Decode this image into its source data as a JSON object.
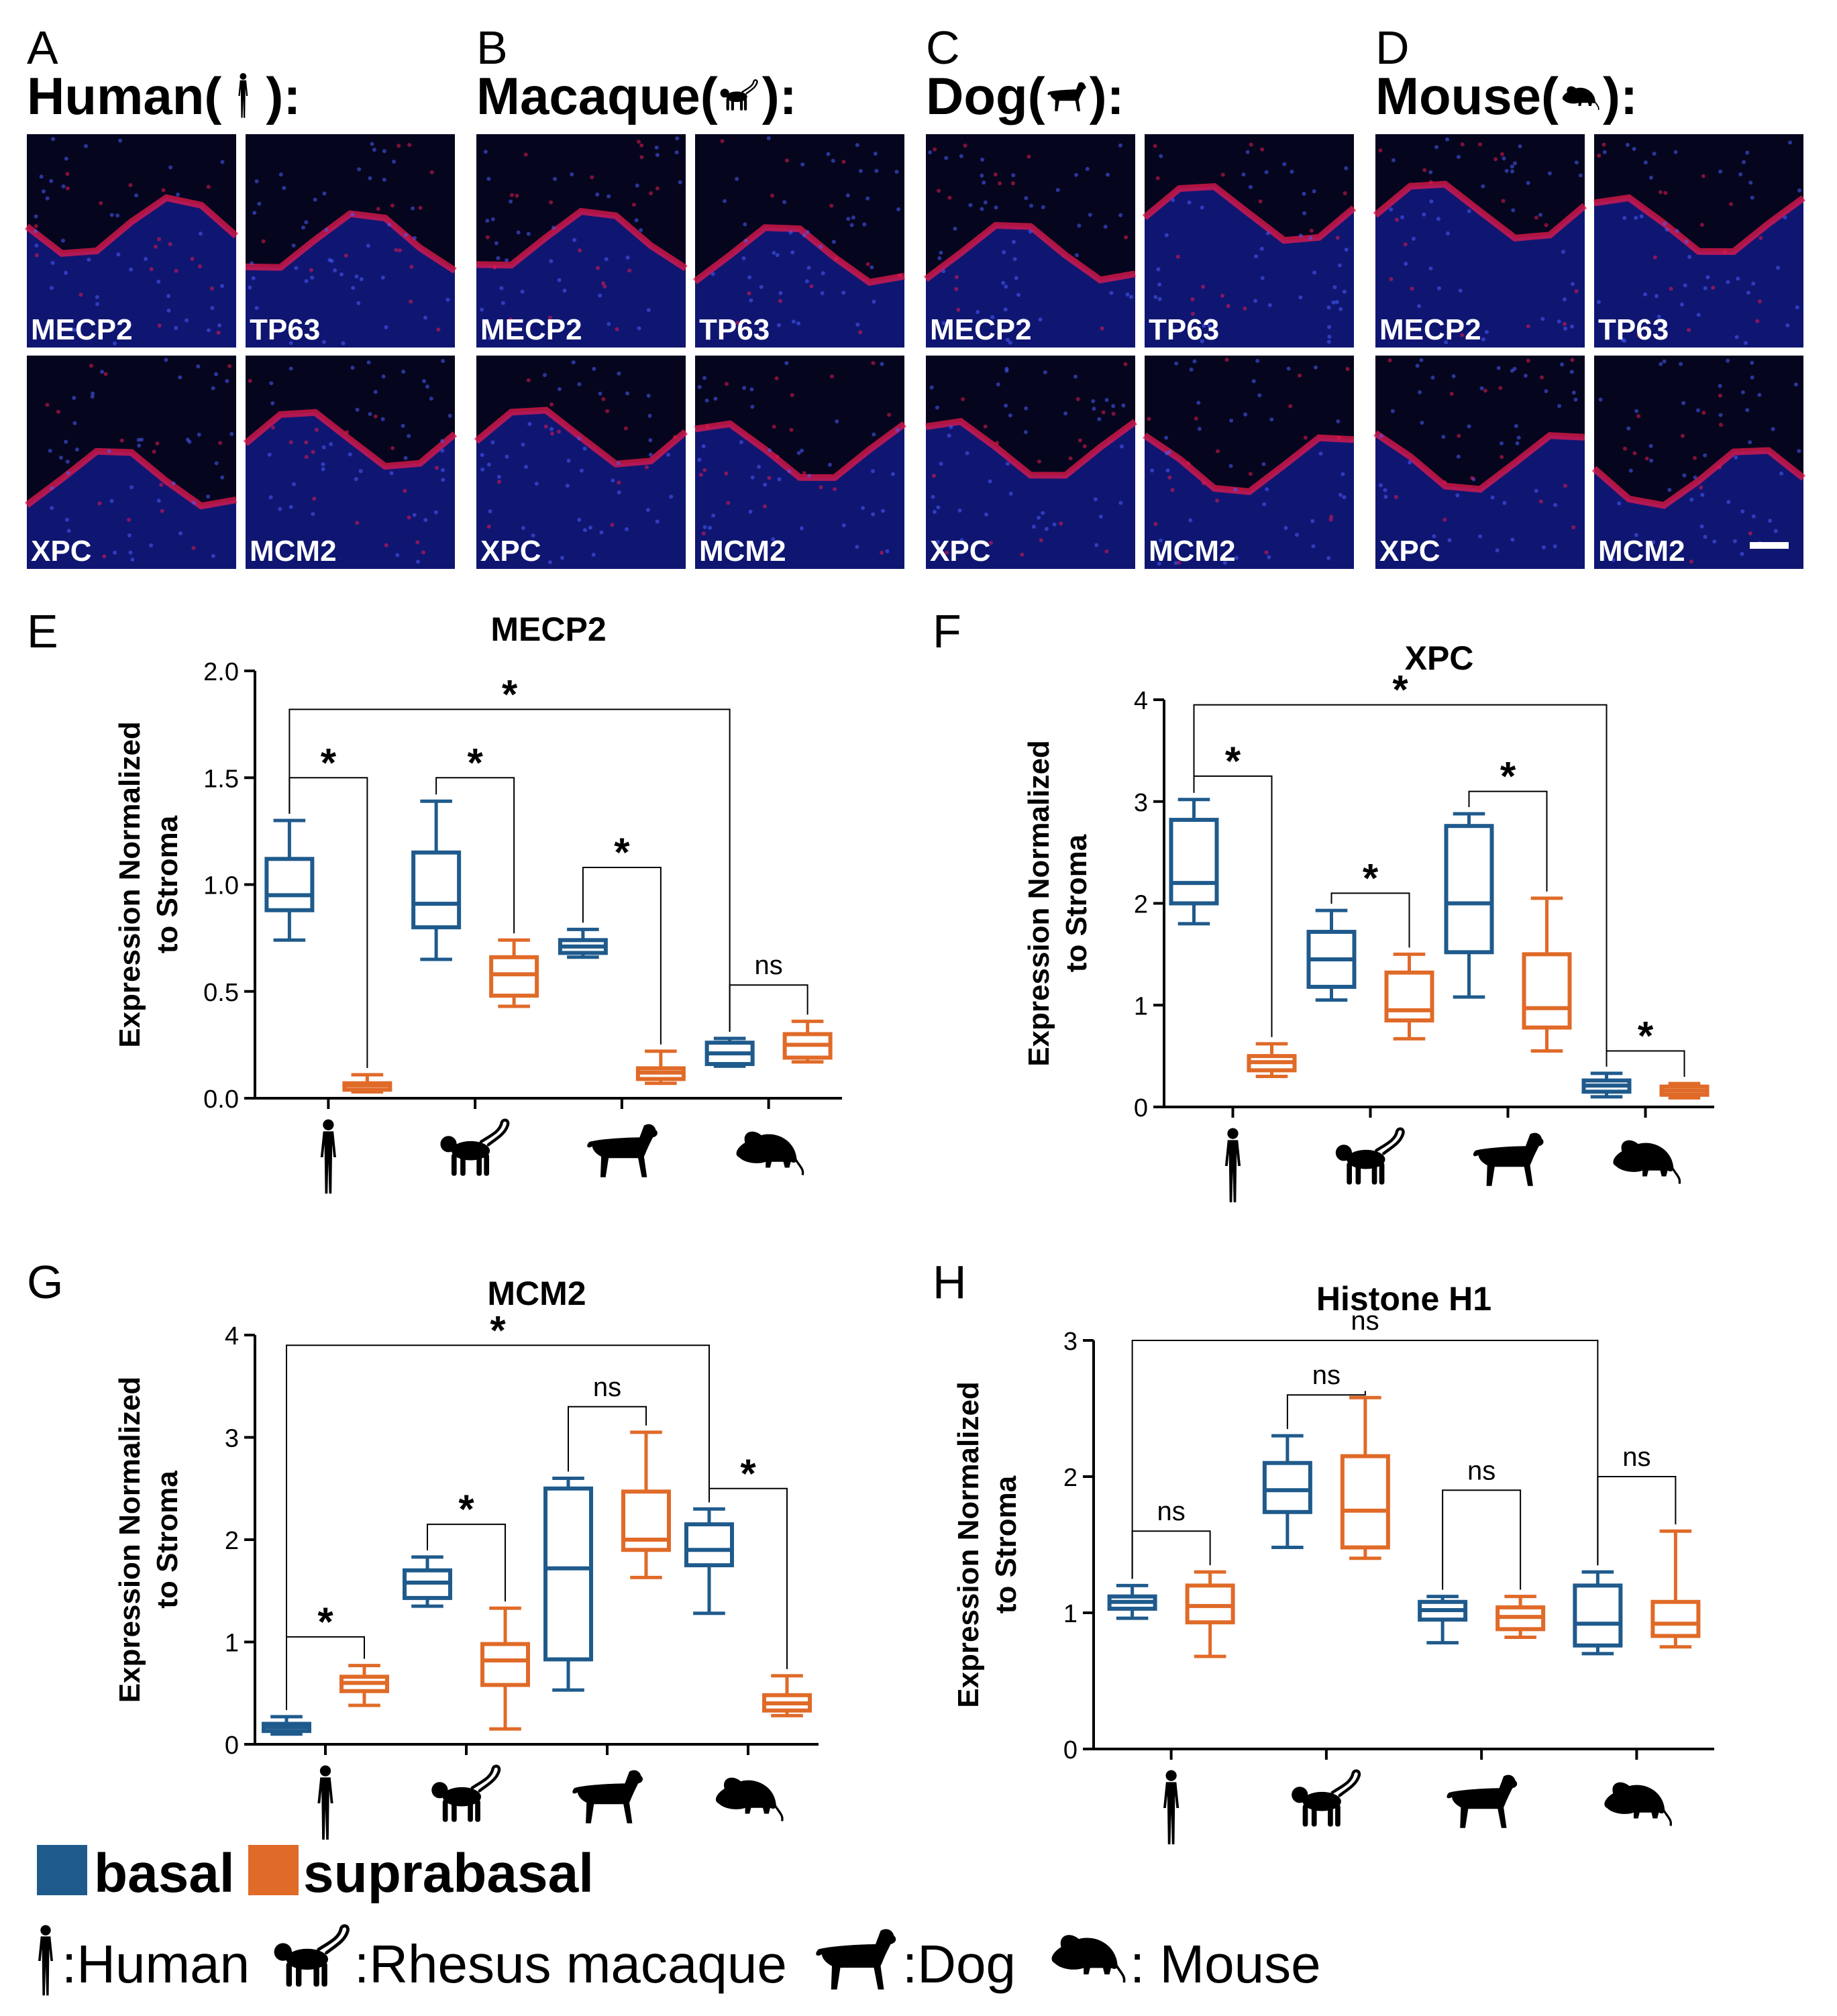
{
  "colors": {
    "basal": "#1f5a8c",
    "suprabasal": "#e06a28",
    "nucleus_stain": "#1d2bd6",
    "marker_stain": "#e8194e",
    "background": "#ffffff"
  },
  "micrographs": [
    {
      "letter": "A",
      "title": "Human(",
      "title_end": "):",
      "species_icon": "human-icon",
      "tiles": [
        "MECP2",
        "TP63",
        "XPC",
        "MCM2"
      ]
    },
    {
      "letter": "B",
      "title": "Macaque(",
      "title_end": "):",
      "species_icon": "macaque-icon",
      "tiles": [
        "MECP2",
        "TP63",
        "XPC",
        "MCM2"
      ]
    },
    {
      "letter": "C",
      "title": "Dog(",
      "title_end": "):",
      "species_icon": "dog-icon",
      "tiles": [
        "MECP2",
        "TP63",
        "XPC",
        "MCM2"
      ]
    },
    {
      "letter": "D",
      "title": "Mouse(",
      "title_end": "):",
      "species_icon": "mouse-icon",
      "tiles": [
        "MECP2",
        "TP63",
        "XPC",
        "MCM2"
      ]
    }
  ],
  "chart_data": [
    {
      "type": "box",
      "panel": "E",
      "title": "MECP2",
      "ylabel": [
        "Expression Normalized",
        "to Stroma"
      ],
      "ylim": [
        0,
        2.0
      ],
      "yticks": [
        "0.0",
        "0.5",
        "1.0",
        "1.5",
        "2.0"
      ],
      "ytick_values": [
        0,
        0.5,
        1.0,
        1.5,
        2.0
      ],
      "categories": [
        "human-icon",
        "macaque-icon",
        "dog-icon",
        "mouse-icon"
      ],
      "series": [
        {
          "name": "basal",
          "boxes": [
            {
              "min": 0.74,
              "q1": 0.88,
              "median": 0.95,
              "q3": 1.12,
              "max": 1.3
            },
            {
              "min": 0.65,
              "q1": 0.8,
              "median": 0.91,
              "q3": 1.15,
              "max": 1.39
            },
            {
              "min": 0.66,
              "q1": 0.68,
              "median": 0.71,
              "q3": 0.74,
              "max": 0.79
            },
            {
              "min": 0.15,
              "q1": 0.16,
              "median": 0.21,
              "q3": 0.26,
              "max": 0.28
            }
          ]
        },
        {
          "name": "suprabasal",
          "boxes": [
            {
              "min": 0.03,
              "q1": 0.04,
              "median": 0.06,
              "q3": 0.07,
              "max": 0.11
            },
            {
              "min": 0.43,
              "q1": 0.48,
              "median": 0.58,
              "q3": 0.66,
              "max": 0.74
            },
            {
              "min": 0.07,
              "q1": 0.09,
              "median": 0.12,
              "q3": 0.14,
              "max": 0.22
            },
            {
              "min": 0.17,
              "q1": 0.19,
              "median": 0.25,
              "q3": 0.3,
              "max": 0.36
            }
          ]
        }
      ],
      "annotations": [
        {
          "type": "within",
          "group": 0,
          "y": 1.5,
          "label": "*"
        },
        {
          "type": "within",
          "group": 1,
          "y": 1.5,
          "label": "*"
        },
        {
          "type": "within",
          "group": 2,
          "y": 1.08,
          "label": "*"
        },
        {
          "type": "within",
          "group": 3,
          "y": 0.53,
          "label": "ns"
        },
        {
          "type": "between",
          "from": 0,
          "to": 3,
          "y": 1.82,
          "label": "*"
        }
      ]
    },
    {
      "type": "box",
      "panel": "F",
      "title": "XPC",
      "ylabel": [
        "Expression Normalized",
        "to Stroma"
      ],
      "ylim": [
        0,
        4
      ],
      "yticks": [
        "0",
        "1",
        "2",
        "3",
        "4"
      ],
      "ytick_values": [
        0,
        1,
        2,
        3,
        4
      ],
      "categories": [
        "human-icon",
        "macaque-icon",
        "dog-icon",
        "mouse-icon"
      ],
      "series": [
        {
          "name": "basal",
          "boxes": [
            {
              "min": 1.8,
              "q1": 2.0,
              "median": 2.2,
              "q3": 2.82,
              "max": 3.02
            },
            {
              "min": 1.05,
              "q1": 1.18,
              "median": 1.45,
              "q3": 1.72,
              "max": 1.93
            },
            {
              "min": 1.08,
              "q1": 1.52,
              "median": 2.0,
              "q3": 2.76,
              "max": 2.88
            },
            {
              "min": 0.1,
              "q1": 0.15,
              "median": 0.21,
              "q3": 0.26,
              "max": 0.33
            }
          ]
        },
        {
          "name": "suprabasal",
          "boxes": [
            {
              "min": 0.3,
              "q1": 0.36,
              "median": 0.44,
              "q3": 0.5,
              "max": 0.62
            },
            {
              "min": 0.67,
              "q1": 0.85,
              "median": 0.95,
              "q3": 1.32,
              "max": 1.5
            },
            {
              "min": 0.55,
              "q1": 0.78,
              "median": 0.97,
              "q3": 1.5,
              "max": 2.05
            },
            {
              "min": 0.09,
              "q1": 0.12,
              "median": 0.16,
              "q3": 0.2,
              "max": 0.23
            }
          ]
        }
      ],
      "annotations": [
        {
          "type": "within",
          "group": 0,
          "y": 3.25,
          "label": "*"
        },
        {
          "type": "within",
          "group": 1,
          "y": 2.1,
          "label": "*"
        },
        {
          "type": "within",
          "group": 2,
          "y": 3.1,
          "label": "*"
        },
        {
          "type": "within",
          "group": 3,
          "y": 0.55,
          "label": "*"
        },
        {
          "type": "between",
          "from": 0,
          "to": 3,
          "y": 3.95,
          "label": "*"
        }
      ]
    },
    {
      "type": "box",
      "panel": "G",
      "title": "MCM2",
      "ylabel": [
        "Expression Normalized",
        "to Stroma"
      ],
      "ylim": [
        0,
        4
      ],
      "yticks": [
        "0",
        "1",
        "2",
        "3",
        "4"
      ],
      "ytick_values": [
        0,
        1,
        2,
        3,
        4
      ],
      "categories": [
        "human-icon",
        "macaque-icon",
        "dog-icon",
        "mouse-icon"
      ],
      "series": [
        {
          "name": "basal",
          "boxes": [
            {
              "min": 0.1,
              "q1": 0.13,
              "median": 0.17,
              "q3": 0.2,
              "max": 0.27
            },
            {
              "min": 1.35,
              "q1": 1.43,
              "median": 1.58,
              "q3": 1.7,
              "max": 1.83
            },
            {
              "min": 0.53,
              "q1": 0.83,
              "median": 1.72,
              "q3": 2.5,
              "max": 2.6
            },
            {
              "min": 1.28,
              "q1": 1.75,
              "median": 1.9,
              "q3": 2.15,
              "max": 2.3
            }
          ]
        },
        {
          "name": "suprabasal",
          "boxes": [
            {
              "min": 0.38,
              "q1": 0.52,
              "median": 0.6,
              "q3": 0.66,
              "max": 0.77
            },
            {
              "min": 0.15,
              "q1": 0.58,
              "median": 0.82,
              "q3": 0.98,
              "max": 1.33
            },
            {
              "min": 1.63,
              "q1": 1.9,
              "median": 2.0,
              "q3": 2.47,
              "max": 3.05
            },
            {
              "min": 0.28,
              "q1": 0.33,
              "median": 0.4,
              "q3": 0.48,
              "max": 0.67
            }
          ]
        }
      ],
      "annotations": [
        {
          "type": "within",
          "group": 0,
          "y": 1.05,
          "label": "*"
        },
        {
          "type": "within",
          "group": 1,
          "y": 2.15,
          "label": "*"
        },
        {
          "type": "within",
          "group": 2,
          "y": 3.3,
          "label": "ns"
        },
        {
          "type": "within",
          "group": 3,
          "y": 2.5,
          "label": "*"
        },
        {
          "type": "between",
          "from": 0,
          "to": 3,
          "y": 3.9,
          "label": "*"
        }
      ]
    },
    {
      "type": "box",
      "panel": "H",
      "title": "Histone H1",
      "ylabel": [
        "Expression Normalized",
        "to Stroma"
      ],
      "ylim": [
        0,
        3
      ],
      "yticks": [
        "0",
        "1",
        "2",
        "3"
      ],
      "ytick_values": [
        0,
        1,
        2,
        3
      ],
      "categories": [
        "human-icon",
        "macaque-icon",
        "dog-icon",
        "mouse-icon"
      ],
      "series": [
        {
          "name": "basal",
          "boxes": [
            {
              "min": 0.96,
              "q1": 1.03,
              "median": 1.08,
              "q3": 1.12,
              "max": 1.2
            },
            {
              "min": 1.48,
              "q1": 1.74,
              "median": 1.9,
              "q3": 2.1,
              "max": 2.3
            },
            {
              "min": 0.78,
              "q1": 0.95,
              "median": 1.02,
              "q3": 1.08,
              "max": 1.12
            },
            {
              "min": 0.7,
              "q1": 0.76,
              "median": 0.92,
              "q3": 1.2,
              "max": 1.3
            }
          ]
        },
        {
          "name": "suprabasal",
          "boxes": [
            {
              "min": 0.68,
              "q1": 0.93,
              "median": 1.05,
              "q3": 1.2,
              "max": 1.3
            },
            {
              "min": 1.4,
              "q1": 1.48,
              "median": 1.75,
              "q3": 2.15,
              "max": 2.58
            },
            {
              "min": 0.82,
              "q1": 0.88,
              "median": 0.97,
              "q3": 1.04,
              "max": 1.12
            },
            {
              "min": 0.75,
              "q1": 0.83,
              "median": 0.92,
              "q3": 1.08,
              "max": 1.6
            }
          ]
        }
      ],
      "annotations": [
        {
          "type": "within",
          "group": 0,
          "y": 1.6,
          "label": "ns"
        },
        {
          "type": "within",
          "group": 1,
          "y": 2.6,
          "label": "ns"
        },
        {
          "type": "within",
          "group": 2,
          "y": 1.9,
          "label": "ns"
        },
        {
          "type": "within",
          "group": 3,
          "y": 2.0,
          "label": "ns"
        },
        {
          "type": "between",
          "from": 0,
          "to": 3,
          "y": 3.0,
          "label": "ns"
        }
      ]
    }
  ],
  "legend": {
    "basal": "basal",
    "suprabasal": "suprabasal"
  },
  "species_key": [
    {
      "icon": "human-icon",
      "label": ":Human"
    },
    {
      "icon": "macaque-icon",
      "label": ":Rhesus macaque"
    },
    {
      "icon": "dog-icon",
      "label": ":Dog"
    },
    {
      "icon": "mouse-icon",
      "label": ": Mouse"
    }
  ]
}
